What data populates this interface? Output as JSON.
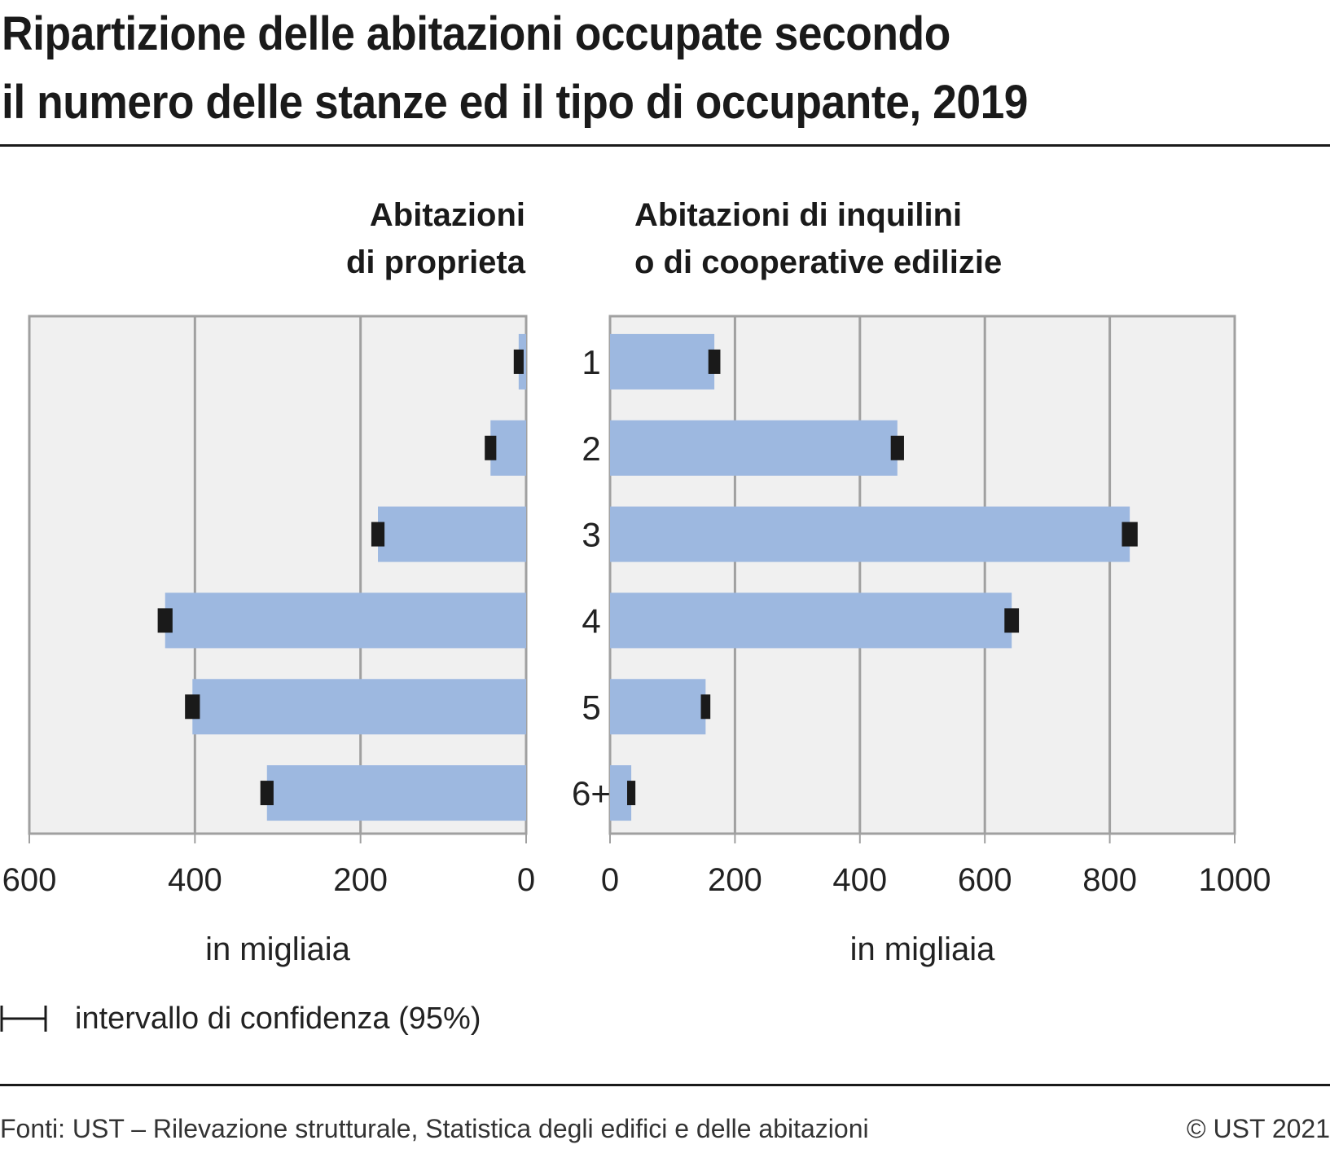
{
  "title_line1": "Ripartizione delle abitazioni occupate secondo",
  "title_line2": "il numero delle stanze ed il tipo di occupante, 2019",
  "legend_label": "intervallo di confidenza (95%)",
  "footer_source": "Fonti: UST – Rilevazione strutturale, Statistica degli edifici e delle abitazioni",
  "footer_copyright": "© UST 2021",
  "colors": {
    "bar": "#9db8e0",
    "plot_bg": "#f0f0f0",
    "grid": "#a0a0a0",
    "error_bar": "#1a1a1a"
  },
  "chart_data": [
    {
      "type": "bar",
      "orientation": "horizontal",
      "direction": "reversed",
      "title_line1": "Abitazioni",
      "title_line2": "di proprieta",
      "xlabel": "in migliaia",
      "categories": [
        "1",
        "2",
        "3",
        "4",
        "5",
        "6+"
      ],
      "values": [
        9,
        43,
        179,
        436,
        403,
        313
      ],
      "error_margin": [
        4,
        5,
        6,
        7,
        7,
        6
      ],
      "xlim": [
        0,
        600
      ],
      "xticks": [
        "0",
        "200",
        "400",
        "600"
      ],
      "grid": true
    },
    {
      "type": "bar",
      "orientation": "horizontal",
      "title_line1": "Abitazioni di inquilini",
      "title_line2": "o di cooperative edilizie",
      "xlabel": "in migliaia",
      "categories": [
        "1",
        "2",
        "3",
        "4",
        "5",
        "6+"
      ],
      "values": [
        167,
        460,
        832,
        643,
        153,
        34
      ],
      "error_margin": [
        7,
        8,
        10,
        9,
        5,
        4
      ],
      "xlim": [
        0,
        1000
      ],
      "xticks": [
        "0",
        "200",
        "400",
        "600",
        "800",
        "1000"
      ],
      "grid": true
    }
  ]
}
